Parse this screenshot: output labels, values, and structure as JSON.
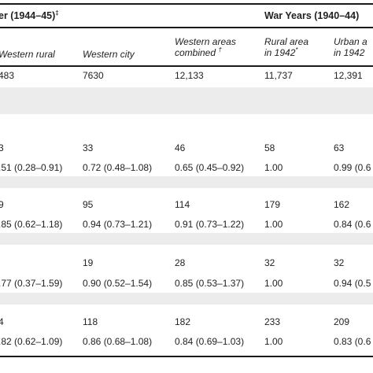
{
  "table": {
    "groups": [
      {
        "label": "er (1944–45)",
        "mark": "‡"
      },
      {
        "label": "War Years (1940–44)",
        "mark": ""
      }
    ],
    "columns": [
      {
        "lines": [
          "Western rural"
        ],
        "mark": ""
      },
      {
        "lines": [
          "Western city"
        ],
        "mark": ""
      },
      {
        "lines": [
          "Western areas",
          "combined"
        ],
        "mark": "†"
      },
      {
        "lines": [
          "Rural area",
          "in 1942"
        ],
        "mark": "*"
      },
      {
        "lines": [
          "Urban a",
          "in 1942"
        ],
        "mark": ""
      }
    ],
    "rows": [
      [
        "483",
        "7630",
        "12,133",
        "11,737",
        "12,391"
      ],
      [
        "",
        "",
        "",
        "",
        ""
      ],
      [
        "",
        "",
        "",
        "",
        ""
      ],
      [
        "3",
        "33",
        "46",
        "58",
        "63"
      ],
      [
        ".51 (0.28–0.91)",
        "0.72 (0.48–1.08)",
        "0.65 (0.45–0.92)",
        "1.00",
        "0.99 (0.6"
      ],
      [
        "",
        "",
        "",
        "",
        ""
      ],
      [
        "9",
        "95",
        "114",
        "179",
        "162"
      ],
      [
        ".85 (0.62–1.18)",
        "0.94 (0.73–1.21)",
        "0.91 (0.73–1.22)",
        "1.00",
        "0.84 (0.6"
      ],
      [
        "",
        "",
        "",
        "",
        ""
      ],
      [
        "",
        "19",
        "28",
        "32",
        "32"
      ],
      [
        ".77 (0.37–1.59)",
        "0.90 (0.52–1.54)",
        "0.85 (0.53–1.37)",
        "1.00",
        "0.94 (0.5"
      ],
      [
        "",
        "",
        "",
        "",
        ""
      ],
      [
        "4",
        "118",
        "182",
        "233",
        "209"
      ],
      [
        ".82 (0.62–1.09)",
        "0.86 (0.68–1.08)",
        "0.84 (0.69–1.03)",
        "1.00",
        "0.83 (0.6"
      ]
    ]
  }
}
